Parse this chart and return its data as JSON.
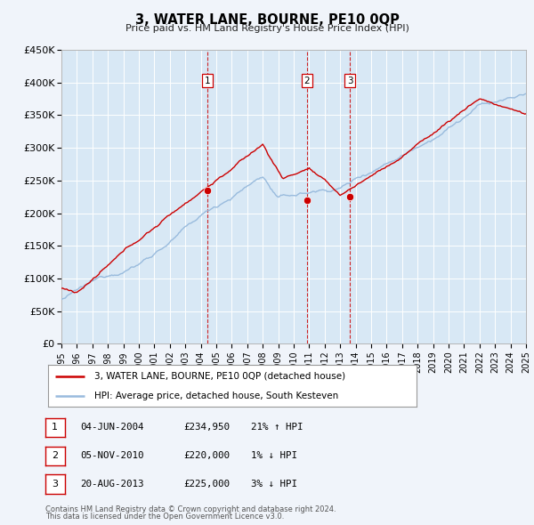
{
  "title": "3, WATER LANE, BOURNE, PE10 0QP",
  "subtitle": "Price paid vs. HM Land Registry's House Price Index (HPI)",
  "ylim": [
    0,
    450000
  ],
  "yticks": [
    0,
    50000,
    100000,
    150000,
    200000,
    250000,
    300000,
    350000,
    400000,
    450000
  ],
  "ytick_labels": [
    "£0",
    "£50K",
    "£100K",
    "£150K",
    "£200K",
    "£250K",
    "£300K",
    "£350K",
    "£400K",
    "£450K"
  ],
  "xlim": [
    1995,
    2025
  ],
  "background_color": "#f0f4fa",
  "plot_bg_color": "#d8e8f5",
  "grid_color": "#ffffff",
  "hpi_line_color": "#99bbdd",
  "price_line_color": "#cc0000",
  "sale_dot_color": "#cc0000",
  "vline_color": "#cc0000",
  "legend_box_color": "#ffffff",
  "legend_border_color": "#999999",
  "sale_label_border": "#cc0000",
  "transactions": [
    {
      "num": 1,
      "date": "04-JUN-2004",
      "date_x": 2004.42,
      "price": 234950,
      "price_str": "£234,950",
      "label": "21% ↑ HPI"
    },
    {
      "num": 2,
      "date": "05-NOV-2010",
      "date_x": 2010.84,
      "price": 220000,
      "price_str": "£220,000",
      "label": "1% ↓ HPI"
    },
    {
      "num": 3,
      "date": "20-AUG-2013",
      "date_x": 2013.63,
      "price": 225000,
      "price_str": "£225,000",
      "label": "3% ↓ HPI"
    }
  ],
  "legend_line1": "3, WATER LANE, BOURNE, PE10 0QP (detached house)",
  "legend_line2": "HPI: Average price, detached house, South Kesteven",
  "footnote1": "Contains HM Land Registry data © Crown copyright and database right 2024.",
  "footnote2": "This data is licensed under the Open Government Licence v3.0."
}
